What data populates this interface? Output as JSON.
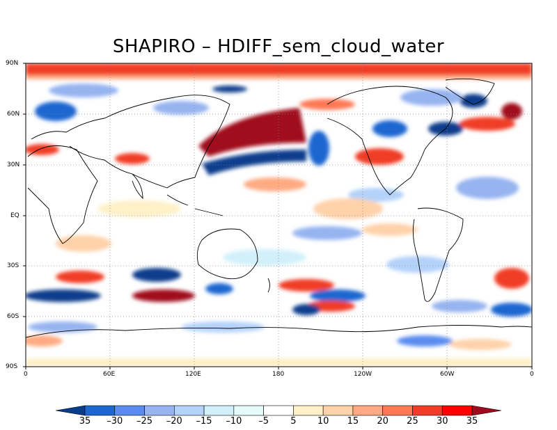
{
  "title": "SHAPIRO – HDIFF_sem_cloud_water",
  "map": {
    "projection": "cylindrical equidistant",
    "lat_labels": [
      "90N",
      "60N",
      "30N",
      "EQ",
      "30S",
      "60S",
      "90S"
    ],
    "lon_labels": [
      "0",
      "60E",
      "120E",
      "180",
      "120W",
      "60W",
      "0"
    ],
    "grid_lines": "dotted"
  },
  "colorbar": {
    "labels": [
      "35",
      "–30",
      "–25",
      "–20",
      "–15",
      "–10",
      "–5",
      "5",
      "10",
      "15",
      "20",
      "25",
      "30",
      "35"
    ],
    "colors": [
      "#0a3c8c",
      "#1c66d0",
      "#5a8cf0",
      "#96b4f0",
      "#b4d2fa",
      "#d2f0fa",
      "#e6fafa",
      "#ffffff",
      "#fff0c8",
      "#ffd2aa",
      "#ffaa82",
      "#ff7855",
      "#f03c28",
      "#ff0000",
      "#a00a1e"
    ]
  },
  "colors": {
    "background": "#ffffff",
    "coastline": "#000000",
    "grid": "#888888"
  }
}
